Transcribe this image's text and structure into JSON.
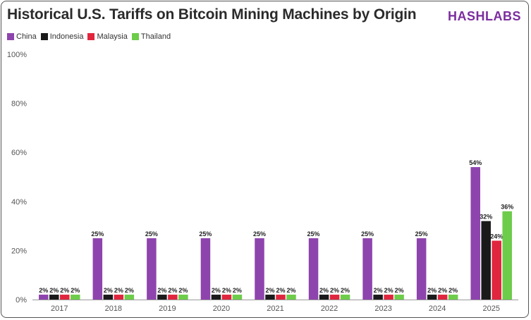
{
  "header": {
    "title": "Historical U.S. Tariffs on Bitcoin Mining Machines by Origin",
    "brand": "HASHLABS"
  },
  "colors": {
    "China": "#8e44ad",
    "Indonesia": "#1a1a1a",
    "Malaysia": "#e0263e",
    "Thailand": "#6dcc4a"
  },
  "chart_data": {
    "type": "bar",
    "categories": [
      "2017",
      "2018",
      "2019",
      "2020",
      "2021",
      "2022",
      "2023",
      "2024",
      "2025"
    ],
    "series": [
      {
        "name": "China",
        "values": [
          2,
          25,
          25,
          25,
          25,
          25,
          25,
          25,
          54
        ]
      },
      {
        "name": "Indonesia",
        "values": [
          2,
          2,
          2,
          2,
          2,
          2,
          2,
          2,
          32
        ]
      },
      {
        "name": "Malaysia",
        "values": [
          2,
          2,
          2,
          2,
          2,
          2,
          2,
          2,
          24
        ]
      },
      {
        "name": "Thailand",
        "values": [
          2,
          2,
          2,
          2,
          2,
          2,
          2,
          2,
          36
        ]
      }
    ],
    "ylim": [
      0,
      100
    ],
    "yticks": [
      "0%",
      "20%",
      "40%",
      "60%",
      "80%",
      "100%"
    ],
    "value_suffix": "%",
    "legend_position": "top-left",
    "grid": false
  }
}
